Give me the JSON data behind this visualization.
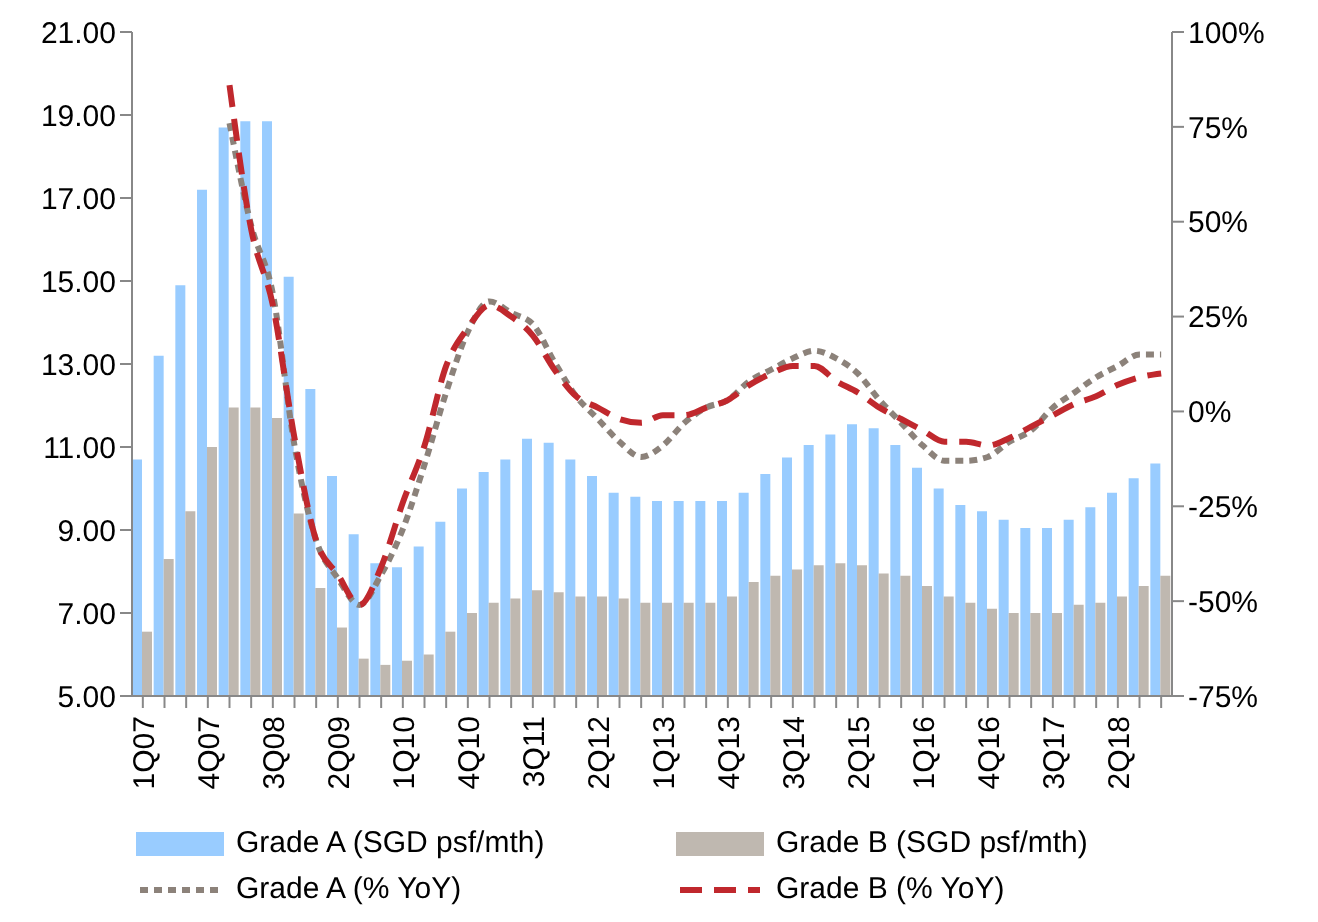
{
  "chart_data": {
    "type": "bar",
    "categories": [
      "1Q07",
      null,
      null,
      "4Q07",
      null,
      null,
      "3Q08",
      null,
      null,
      "2Q09",
      null,
      null,
      "1Q10",
      null,
      null,
      "4Q10",
      null,
      null,
      "3Q11",
      null,
      null,
      "2Q12",
      null,
      null,
      "1Q13",
      null,
      null,
      "4Q13",
      null,
      null,
      "3Q14",
      null,
      null,
      "2Q15",
      null,
      null,
      "1Q16",
      null,
      null,
      "4Q16",
      null,
      null,
      "3Q17",
      null,
      null,
      "2Q18",
      null,
      null
    ],
    "series": [
      {
        "name": "Grade A (SGD psf/mth)",
        "color": "#99ccff",
        "values": [
          10.7,
          13.2,
          14.9,
          17.2,
          18.7,
          18.85,
          18.85,
          15.1,
          12.4,
          10.3,
          8.9,
          8.2,
          8.1,
          8.6,
          9.2,
          10.0,
          10.4,
          10.7,
          11.2,
          11.1,
          10.7,
          10.3,
          9.9,
          9.8,
          9.7,
          9.7,
          9.7,
          9.7,
          9.9,
          10.35,
          10.75,
          11.05,
          11.3,
          11.55,
          11.45,
          11.05,
          10.5,
          10.0,
          9.6,
          9.45,
          9.25,
          9.05,
          9.05,
          9.25,
          9.55,
          9.9,
          10.25,
          10.6
        ]
      },
      {
        "name": "Grade B (SGD psf/mth)",
        "color": "#bfb8b0",
        "values": [
          6.55,
          8.3,
          9.45,
          11.0,
          11.95,
          11.95,
          11.7,
          9.4,
          7.6,
          6.65,
          5.9,
          5.75,
          5.85,
          6.0,
          6.55,
          7.0,
          7.25,
          7.35,
          7.55,
          7.5,
          7.4,
          7.4,
          7.35,
          7.25,
          7.25,
          7.25,
          7.25,
          7.4,
          7.75,
          7.9,
          8.05,
          8.15,
          8.2,
          8.15,
          7.95,
          7.9,
          7.65,
          7.4,
          7.25,
          7.1,
          7.0,
          7.0,
          7.0,
          7.2,
          7.25,
          7.4,
          7.65,
          7.9
        ]
      },
      {
        "name": "Grade A (% YoY)",
        "type": "line",
        "axis": "y2",
        "line_style": "dotted",
        "color": "#8c827a",
        "values": [
          null,
          null,
          null,
          null,
          76,
          49,
          31,
          -9,
          -34,
          -44,
          -51,
          -43,
          -31,
          -14,
          5,
          21,
          29,
          26,
          23,
          13,
          4,
          -2,
          -8,
          -12,
          -9,
          -3,
          1,
          3,
          8,
          11,
          14,
          16,
          14,
          10,
          3,
          -3,
          -9,
          -13,
          -13,
          -12,
          -8,
          -5,
          1,
          5,
          9,
          12,
          15,
          15
        ]
      },
      {
        "name": "Grade B (% YoY)",
        "type": "line",
        "axis": "y2",
        "line_style": "dashed",
        "color": "#c0282d",
        "values": [
          null,
          null,
          null,
          null,
          86,
          48,
          28,
          -7,
          -34,
          -43,
          -51,
          -41,
          -24,
          -9,
          12,
          22,
          28,
          25,
          20,
          11,
          4,
          1,
          -2,
          -3,
          -1,
          -1,
          1,
          3,
          7,
          10,
          12,
          12,
          8,
          5,
          1,
          -2,
          -5,
          -8,
          -8,
          -9,
          -7,
          -4,
          -1,
          2,
          4,
          7,
          9,
          10
        ]
      }
    ],
    "ylim": [
      5,
      21
    ],
    "yticks": [
      {
        "value": 5,
        "label": "5.00"
      },
      {
        "value": 7,
        "label": "7.00"
      },
      {
        "value": 9,
        "label": "9.00"
      },
      {
        "value": 11,
        "label": "11.00"
      },
      {
        "value": 13,
        "label": "13.00"
      },
      {
        "value": 15,
        "label": "15.00"
      },
      {
        "value": 17,
        "label": "17.00"
      },
      {
        "value": 19,
        "label": "19.00"
      },
      {
        "value": 21,
        "label": "21.00"
      }
    ],
    "y2lim": [
      -75,
      100
    ],
    "y2ticks": [
      {
        "value": -75,
        "label": "-75%"
      },
      {
        "value": -50,
        "label": "-50%"
      },
      {
        "value": -25,
        "label": "-25%"
      },
      {
        "value": 0,
        "label": "0%"
      },
      {
        "value": 25,
        "label": "25%"
      },
      {
        "value": 50,
        "label": "50%"
      },
      {
        "value": 75,
        "label": "75%"
      },
      {
        "value": 100,
        "label": "100%"
      }
    ],
    "grid": false,
    "legend": "bottom",
    "marker": "none"
  }
}
